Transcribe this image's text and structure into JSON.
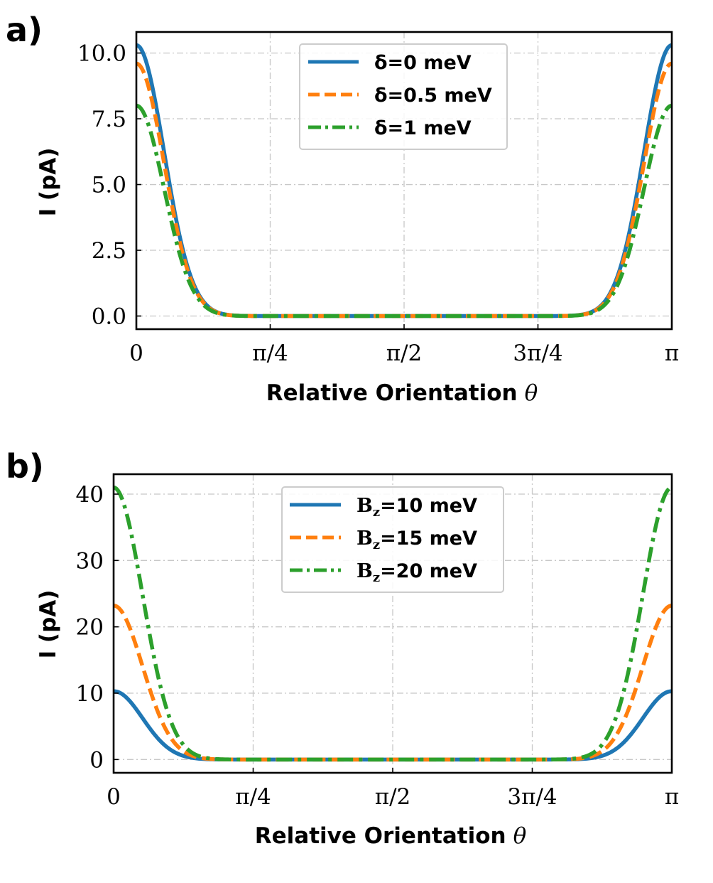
{
  "chart_data": [
    {
      "type": "line",
      "panel_label": "a)",
      "xlabel": "Relative Orientation",
      "xlabel_symbol": "θ",
      "ylabel": "I (pA)",
      "xlim": [
        0,
        3.14159
      ],
      "ylim": [
        -0.5,
        10.8
      ],
      "xticks": [
        0,
        0.7854,
        1.5708,
        2.3562,
        3.14159
      ],
      "xtick_labels": [
        "0",
        "π/4",
        "π/2",
        "3π/4",
        "π"
      ],
      "yticks": [
        0,
        2.5,
        5,
        7.5,
        10
      ],
      "ytick_labels": [
        "0.0",
        "2.5",
        "5.0",
        "7.5",
        "10.0"
      ],
      "grid": true,
      "legend_position": "top-center",
      "series": [
        {
          "name": "δ=0 meV",
          "color": "#1f77b4",
          "style": "solid",
          "peak": 10.3
        },
        {
          "name": "δ=0.5 meV",
          "color": "#ff7f0e",
          "style": "dashed",
          "peak": 9.6
        },
        {
          "name": "δ=1 meV",
          "color": "#2ca02c",
          "style": "dashdot",
          "peak": 8.0
        }
      ],
      "curve_shape": "I(θ) = peak · exp(-(θ/0.23)^2) + peak · exp(-((π-θ)/0.23)^2); ≈0 between π/4 and 3π/4"
    },
    {
      "type": "line",
      "panel_label": "b)",
      "xlabel": "Relative Orientation",
      "xlabel_symbol": "θ",
      "ylabel": "I (pA)",
      "xlim": [
        0,
        3.14159
      ],
      "ylim": [
        -2,
        43
      ],
      "xticks": [
        0,
        0.7854,
        1.5708,
        2.3562,
        3.14159
      ],
      "xtick_labels": [
        "0",
        "π/4",
        "π/2",
        "3π/4",
        "π"
      ],
      "yticks": [
        0,
        10,
        20,
        30,
        40
      ],
      "ytick_labels": [
        "0",
        "10",
        "20",
        "30",
        "40"
      ],
      "grid": true,
      "legend_position": "top-center",
      "series": [
        {
          "name": "B",
          "subscript": "z",
          "suffix": "=10 meV",
          "color": "#1f77b4",
          "style": "solid",
          "peak": 10.3
        },
        {
          "name": "B",
          "subscript": "z",
          "suffix": "=15 meV",
          "color": "#ff7f0e",
          "style": "dashed",
          "peak": 23.2
        },
        {
          "name": "B",
          "subscript": "z",
          "suffix": "=20 meV",
          "color": "#2ca02c",
          "style": "dashdot",
          "peak": 41.0
        }
      ],
      "curve_shape": "Same Gaussian-like peaks at θ=0 and θ=π; ≈0 between π/4 and 3π/4"
    }
  ]
}
